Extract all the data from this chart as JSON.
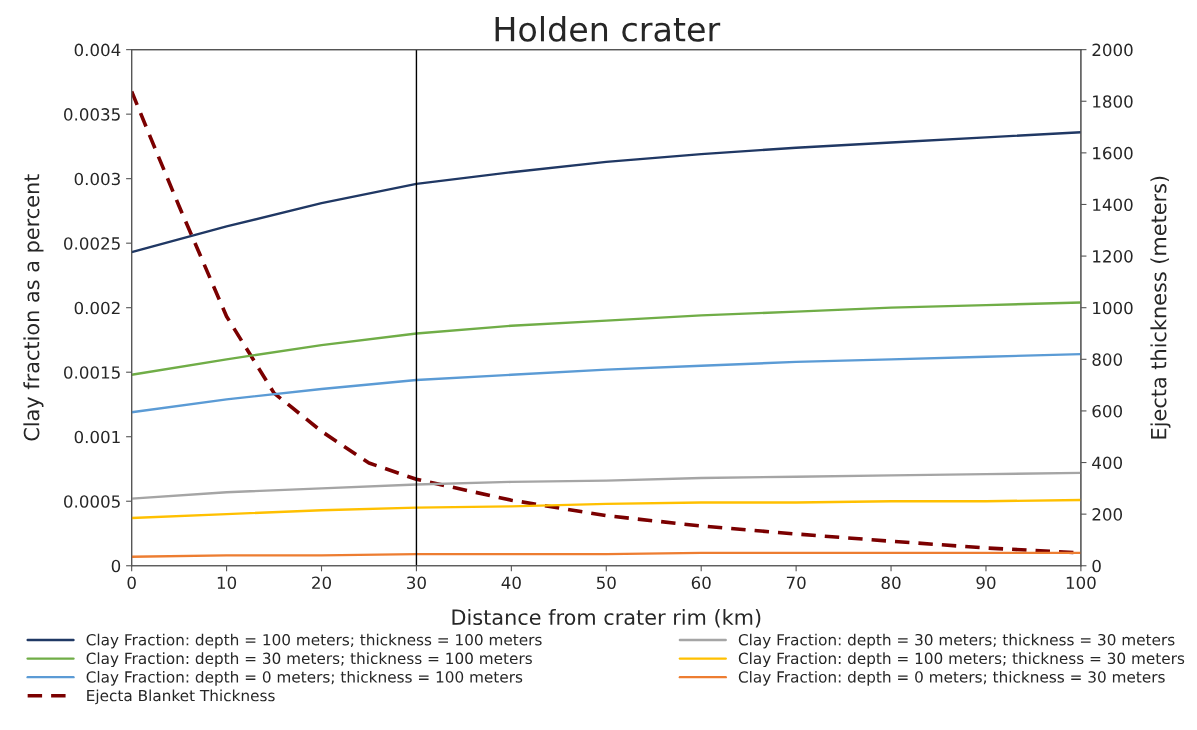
{
  "chart_data": {
    "type": "line",
    "title": "Holden crater",
    "xlabel": "Distance from crater rim (km)",
    "ylabel": "Clay fraction as a percent",
    "y2label": "Ejecta thickness (meters)",
    "x": [
      0,
      10,
      20,
      30,
      40,
      50,
      60,
      70,
      80,
      90,
      100
    ],
    "series": [
      {
        "name": "Clay Fraction: depth = 100 meters; thickness = 100 meters",
        "color": "#203864",
        "values": [
          0.00243,
          0.00263,
          0.00281,
          0.00296,
          0.00305,
          0.00313,
          0.00319,
          0.00324,
          0.00328,
          0.00332,
          0.00336
        ]
      },
      {
        "name": "Clay Fraction: depth = 30 meters; thickness = 100 meters",
        "color": "#70ad47",
        "values": [
          0.00148,
          0.0016,
          0.00171,
          0.0018,
          0.00186,
          0.0019,
          0.00194,
          0.00197,
          0.002,
          0.00202,
          0.00204
        ]
      },
      {
        "name": "Clay Fraction: depth = 0 meters; thickness = 100 meters",
        "color": "#5b9bd5",
        "values": [
          0.00119,
          0.00129,
          0.00137,
          0.00144,
          0.00148,
          0.00152,
          0.00155,
          0.00158,
          0.0016,
          0.00162,
          0.00164
        ]
      },
      {
        "name": "Ejecta Blanket Thickness",
        "color": "#7b0000",
        "axis": "y2",
        "line_style": "dashed",
        "x": [
          0,
          2,
          5,
          10,
          15,
          20,
          25,
          30,
          40,
          50,
          60,
          70,
          80,
          90,
          100
        ],
        "values": [
          1838,
          1658,
          1393,
          966,
          669,
          521,
          398,
          335,
          254,
          194,
          154,
          123,
          95,
          69,
          50
        ]
      },
      {
        "name": "Clay Fraction: depth = 30 meters; thickness = 30 meters",
        "color": "#a5a5a5",
        "values": [
          0.00052,
          0.00057,
          0.0006,
          0.00063,
          0.00065,
          0.00066,
          0.00068,
          0.00069,
          0.0007,
          0.00071,
          0.00072
        ]
      },
      {
        "name": "Clay Fraction: depth = 100 meters; thickness = 30 meters",
        "color": "#ffc000",
        "values": [
          0.00037,
          0.0004,
          0.00043,
          0.00045,
          0.00046,
          0.00048,
          0.00049,
          0.00049,
          0.0005,
          0.0005,
          0.00051
        ]
      },
      {
        "name": "Clay Fraction: depth = 0 meters; thickness = 30 meters",
        "color": "#ed7d31",
        "values": [
          7e-05,
          8e-05,
          8e-05,
          9e-05,
          9e-05,
          9e-05,
          0.0001,
          0.0001,
          0.0001,
          0.0001,
          0.0001
        ]
      }
    ],
    "xlim": [
      0,
      100
    ],
    "xticks": [
      0,
      10,
      20,
      30,
      40,
      50,
      60,
      70,
      80,
      90,
      100
    ],
    "ylim": [
      0,
      0.004
    ],
    "yticks": [
      0,
      0.0005,
      0.001,
      0.0015,
      0.002,
      0.0025,
      0.003,
      0.0035,
      0.004
    ],
    "y2lim": [
      0,
      2000
    ],
    "y2ticks": [
      0,
      200,
      400,
      600,
      800,
      1000,
      1200,
      1400,
      1600,
      1800,
      2000
    ],
    "ref_lines": [
      {
        "axis": "x",
        "value": 30,
        "color": "#000000"
      }
    ],
    "grid": false,
    "legend": "bottom",
    "marker": "none",
    "line_style": "solid"
  }
}
